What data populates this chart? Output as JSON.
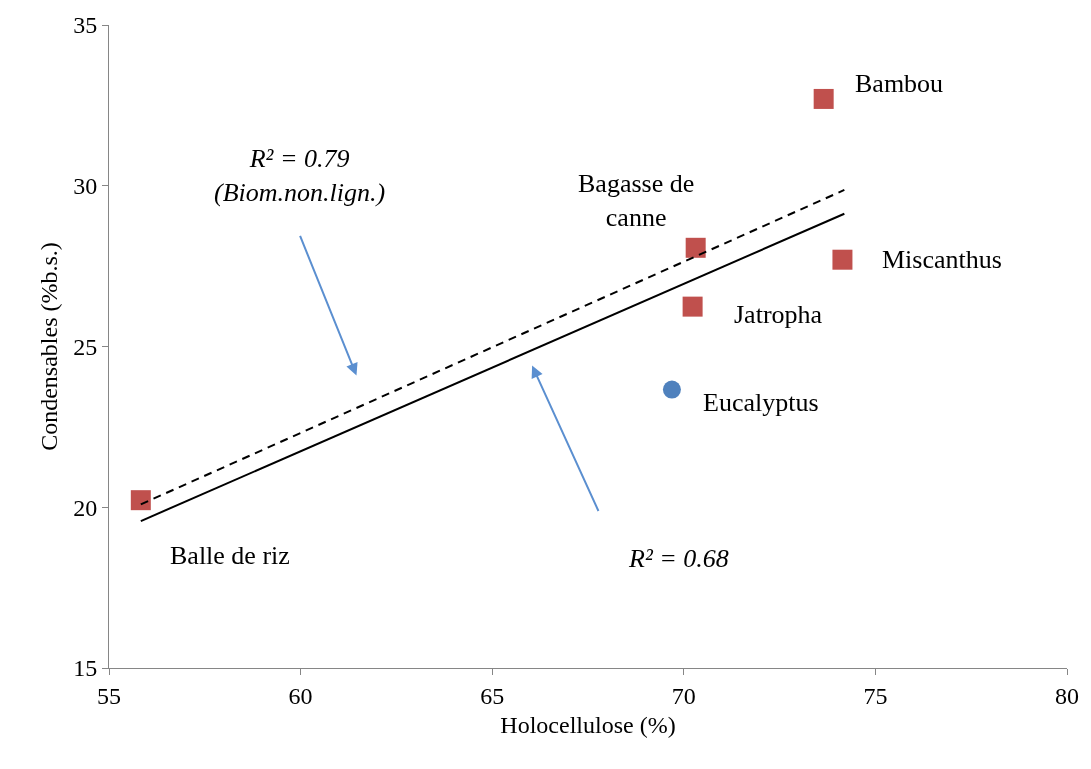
{
  "chart_data": {
    "type": "scatter",
    "xlabel": "Holocellulose (%)",
    "ylabel": "Condensables (%b.s.)",
    "xlim": [
      55,
      80
    ],
    "xticks": [
      55,
      60,
      65,
      70,
      75,
      80
    ],
    "ylim": [
      15,
      35
    ],
    "yticks": [
      15,
      20,
      25,
      30,
      35
    ],
    "series": [
      {
        "marker": "square",
        "color": "#c0504d",
        "x": [
          55.83,
          70.31,
          70.23,
          74.14,
          73.65
        ],
        "values": [
          20.22,
          28.07,
          26.24,
          27.7,
          32.7
        ]
      },
      {
        "marker": "circle",
        "color": "#4f81bd",
        "x": [
          69.69
        ],
        "values": [
          23.66
        ]
      },
      {
        "type": "line",
        "marker": "none",
        "line_style": "solid",
        "color": "#000000",
        "x": [
          55.83,
          74.19
        ],
        "values": [
          19.57,
          29.13
        ]
      },
      {
        "type": "line",
        "marker": "none",
        "line_style": "dashed",
        "color": "#000000",
        "x": [
          55.83,
          74.19
        ],
        "values": [
          20.09,
          29.87
        ]
      }
    ],
    "annotations": [
      {
        "text": "Balle de riz",
        "x": 55.83,
        "y": 20.22
      },
      {
        "text": "Bagasse de\ncanne",
        "x": 70.31,
        "y": 28.07
      },
      {
        "text": "Jatropha",
        "x": 70.23,
        "y": 26.24
      },
      {
        "text": "Miscanthus",
        "x": 74.14,
        "y": 27.7
      },
      {
        "text": "Bambou",
        "x": 73.65,
        "y": 32.7
      },
      {
        "text": "Eucalyptus",
        "x": 69.69,
        "y": 23.66
      },
      "R² = 0.79\n(Biom.non.lign.)",
      "R² = 0.68"
    ]
  }
}
